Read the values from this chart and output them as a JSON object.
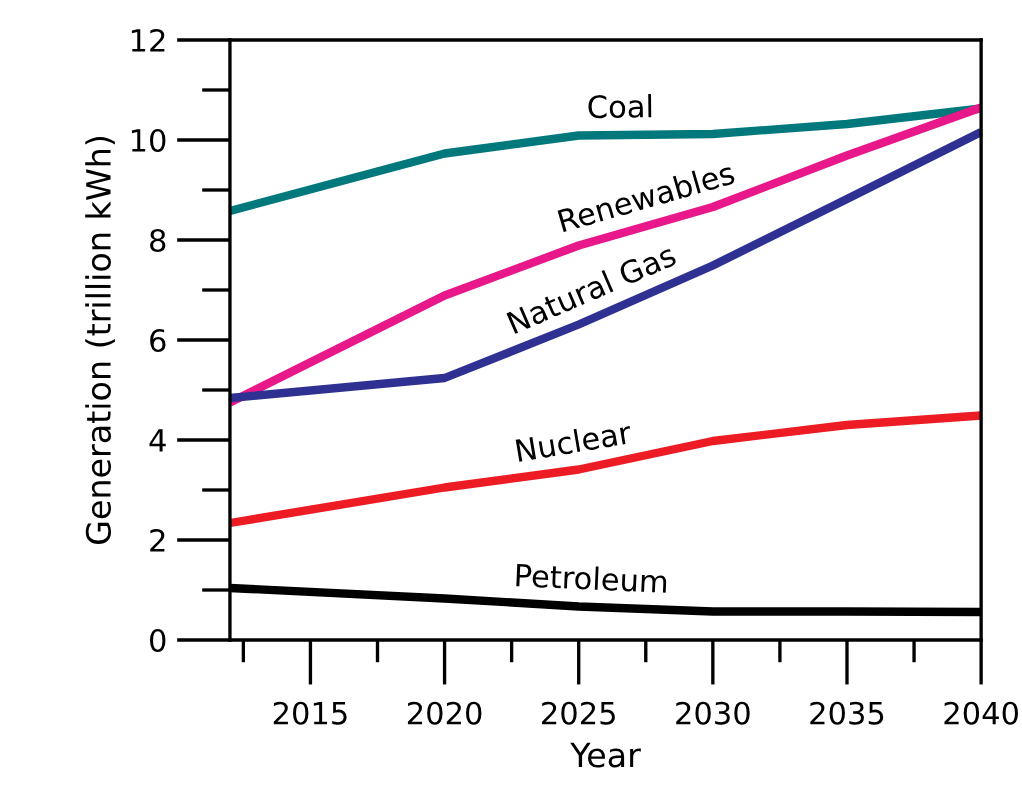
{
  "chart_data": {
    "type": "line",
    "xlabel": "Year",
    "ylabel": "Generation (trillion kWh)",
    "x": [
      2012,
      2020,
      2025,
      2030,
      2035,
      2040
    ],
    "series": [
      {
        "name": "Coal",
        "color": "#00787c",
        "values": [
          8.58,
          9.73,
          10.09,
          10.12,
          10.32,
          10.63
        ]
      },
      {
        "name": "Renewables",
        "color": "#e8178a",
        "values": [
          4.75,
          6.89,
          7.89,
          8.66,
          9.69,
          10.65
        ]
      },
      {
        "name": "Natural Gas",
        "color": "#2e3192",
        "values": [
          4.84,
          5.24,
          6.31,
          7.49,
          8.82,
          10.16
        ]
      },
      {
        "name": "Nuclear",
        "color": "#ed1c24",
        "values": [
          2.34,
          3.05,
          3.41,
          3.98,
          4.3,
          4.49
        ]
      },
      {
        "name": "Petroleum",
        "color": "#000000",
        "values": [
          1.04,
          0.83,
          0.67,
          0.57,
          0.57,
          0.56
        ]
      }
    ],
    "xlim": [
      2012,
      2040
    ],
    "xticks": [
      2015,
      2020,
      2025,
      2030,
      2035,
      2040
    ],
    "ylim": [
      0,
      12
    ],
    "yticks": [
      0,
      2,
      4,
      6,
      8,
      10,
      12
    ],
    "grid": false,
    "legend": false,
    "marker": "none",
    "line_style": "solid"
  }
}
